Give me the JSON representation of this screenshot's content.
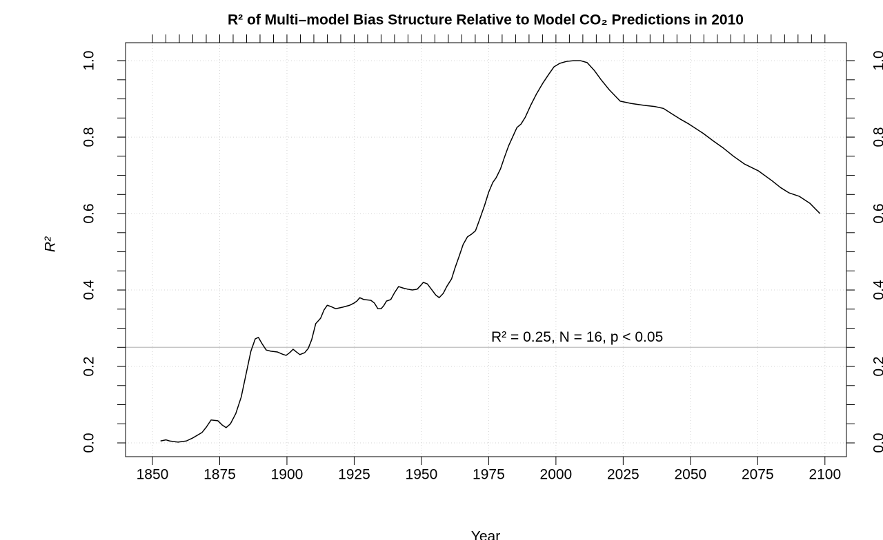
{
  "chart_data": {
    "type": "line",
    "title": "R² of Multi–model Bias Structure Relative to Model CO₂ Predictions in 2010",
    "xlabel": "Year",
    "ylabel": "R²",
    "annotation": "R² = 0.25, N = 16,  p < 0.05",
    "hline": 0.25,
    "hline_color": "#bebebe",
    "color": "#000000",
    "x": [
      1853,
      1855,
      1856.4,
      1859.5,
      1862.6,
      1865,
      1868.4,
      1870,
      1871.8,
      1874.3,
      1875.9,
      1877.4,
      1879,
      1881,
      1883,
      1884.8,
      1886.6,
      1888.2,
      1889.4,
      1890.7,
      1892.3,
      1894,
      1896.4,
      1898.4,
      1899.7,
      1901,
      1902.3,
      1903.5,
      1904.8,
      1906.6,
      1907.9,
      1909.2,
      1910.7,
      1912.5,
      1913.8,
      1915,
      1916.3,
      1918.1,
      1920.7,
      1923.3,
      1925,
      1926,
      1927.1,
      1928.6,
      1931.2,
      1932.5,
      1933.8,
      1935,
      1936,
      1937,
      1938.6,
      1940,
      1941.5,
      1943.2,
      1945,
      1946.6,
      1948.4,
      1949.6,
      1950.7,
      1952.2,
      1953.7,
      1955.3,
      1956.6,
      1958.1,
      1959.4,
      1961.2,
      1962.4,
      1964,
      1965.5,
      1967.1,
      1968.6,
      1970.1,
      1971.7,
      1973.5,
      1975,
      1976.5,
      1977.8,
      1979.4,
      1980.9,
      1982.4,
      1984.2,
      1985.5,
      1987,
      1988.6,
      1990.6,
      1992.7,
      1995.2,
      1997.3,
      1999.3,
      2001.4,
      2003.9,
      2006.5,
      2009.1,
      2011.6,
      2014.2,
      2016.8,
      2019.8,
      2023.9,
      2028,
      2032.9,
      2036.7,
      2040,
      2043.1,
      2046,
      2049.5,
      2054.7,
      2058.5,
      2062.3,
      2066,
      2070,
      2075.2,
      2080.3,
      2083.5,
      2086.7,
      2090.5,
      2094.4,
      2096.9,
      2098.2
    ],
    "values": [
      0.005,
      0.008,
      0.005,
      0.002,
      0.005,
      0.013,
      0.027,
      0.041,
      0.06,
      0.058,
      0.047,
      0.04,
      0.05,
      0.077,
      0.12,
      0.18,
      0.24,
      0.272,
      0.276,
      0.26,
      0.243,
      0.24,
      0.238,
      0.232,
      0.229,
      0.236,
      0.245,
      0.238,
      0.231,
      0.236,
      0.247,
      0.27,
      0.312,
      0.326,
      0.348,
      0.36,
      0.357,
      0.351,
      0.355,
      0.36,
      0.366,
      0.371,
      0.38,
      0.375,
      0.373,
      0.366,
      0.351,
      0.351,
      0.359,
      0.371,
      0.375,
      0.393,
      0.409,
      0.405,
      0.402,
      0.4,
      0.402,
      0.411,
      0.42,
      0.416,
      0.402,
      0.387,
      0.38,
      0.391,
      0.409,
      0.429,
      0.456,
      0.488,
      0.519,
      0.539,
      0.546,
      0.555,
      0.586,
      0.622,
      0.656,
      0.681,
      0.694,
      0.717,
      0.748,
      0.777,
      0.805,
      0.825,
      0.834,
      0.852,
      0.883,
      0.912,
      0.942,
      0.964,
      0.984,
      0.993,
      0.998,
      1.0,
      1.0,
      0.995,
      0.975,
      0.95,
      0.924,
      0.894,
      0.888,
      0.883,
      0.88,
      0.875,
      0.861,
      0.848,
      0.834,
      0.81,
      0.79,
      0.771,
      0.75,
      0.73,
      0.712,
      0.686,
      0.668,
      0.654,
      0.645,
      0.627,
      0.609,
      0.6
    ],
    "xlim": [
      1840,
      2108
    ],
    "ylim": [
      -0.036,
      1.047
    ],
    "y2lim": [
      -0.036,
      1.047
    ],
    "xticks": [
      1850,
      1875,
      1900,
      1925,
      1950,
      1975,
      2000,
      2025,
      2050,
      2075,
      2100
    ],
    "yticks": [
      {
        "value": 0,
        "label": "0.0"
      },
      0.2,
      0.4,
      0.6,
      0.8,
      {
        "value": 1,
        "label": "1.0"
      }
    ],
    "y2ticks": [
      {
        "value": 0,
        "label": "0.0"
      },
      0.2,
      0.4,
      0.6,
      0.8,
      {
        "value": 1,
        "label": "1.0"
      }
    ],
    "xticks_minor": [
      1850,
      1855,
      1860,
      1865,
      1870,
      1875,
      1880,
      1885,
      1890,
      1895,
      1900,
      1905,
      1910,
      1915,
      1920,
      1925,
      1930,
      1935,
      1940,
      1945,
      1950,
      1955,
      1960,
      1965,
      1970,
      1975,
      1980,
      1985,
      1990,
      1995,
      2000,
      2005,
      2010,
      2015,
      2020,
      2025,
      2030,
      2035,
      2040,
      2045,
      2050,
      2055,
      2060,
      2065,
      2070,
      2075,
      2080,
      2085,
      2090,
      2095,
      2100
    ],
    "yticks_minor": [
      0,
      0.05,
      0.1,
      0.15,
      0.2,
      0.25,
      0.3,
      0.35,
      0.4,
      0.45,
      0.5,
      0.55,
      0.6,
      0.65,
      0.7,
      0.75,
      0.8,
      0.85,
      0.9,
      0.95,
      1
    ],
    "grid": true
  }
}
